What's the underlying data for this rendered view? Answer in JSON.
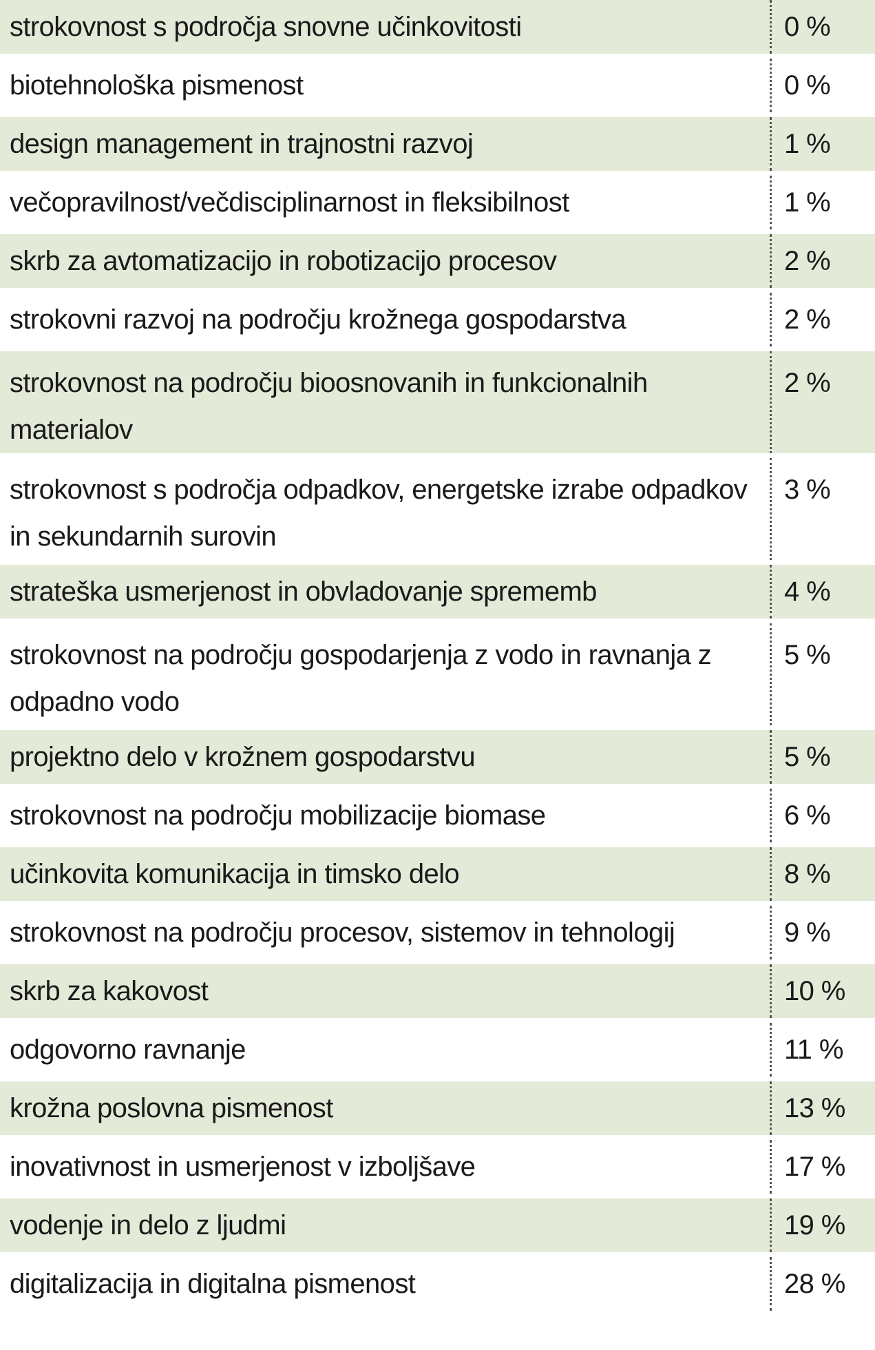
{
  "rows": [
    {
      "label": "strokovnost s področja snovne učinkovitosti",
      "value": "0 %"
    },
    {
      "label": "biotehnološka pismenost",
      "value": "0 %"
    },
    {
      "label": "design management in trajnostni razvoj",
      "value": "1 %"
    },
    {
      "label": "večopravilnost/večdisciplinarnost in fleksibilnost",
      "value": "1 %"
    },
    {
      "label": "skrb za avtomatizacijo in robotizacijo procesov",
      "value": "2 %"
    },
    {
      "label": "strokovni razvoj na področju krožnega gospodarstva",
      "value": "2 %"
    },
    {
      "label": "strokovnost na področju bioosnovanih in funkcionalnih materialov",
      "value": "2 %"
    },
    {
      "label": "strokovnost s področja odpadkov, energetske izrabe odpadkov in sekundarnih surovin",
      "value": "3 %"
    },
    {
      "label": "strateška usmerjenost in obvladovanje sprememb",
      "value": "4 %"
    },
    {
      "label": "strokovnost na področju gospodarjenja z vodo in ravnanja z odpadno vodo",
      "value": "5 %"
    },
    {
      "label": "projektno delo v krožnem gospodarstvu",
      "value": "5 %"
    },
    {
      "label": "strokovnost na področju mobilizacije biomase",
      "value": "6 %"
    },
    {
      "label": "učinkovita komunikacija in timsko delo",
      "value": "8 %"
    },
    {
      "label": "strokovnost na področju procesov, sistemov in tehnologij",
      "value": "9 %"
    },
    {
      "label": "skrb za kakovost",
      "value": "10 %"
    },
    {
      "label": "odgovorno ravnanje",
      "value": "11 %"
    },
    {
      "label": "krožna poslovna pismenost",
      "value": "13 %"
    },
    {
      "label": "inovativnost in usmerjenost v izboljšave",
      "value": "17 %"
    },
    {
      "label": "vodenje in delo z ljudmi",
      "value": "19 %"
    },
    {
      "label": "digitalizacija in digitalna pismenost",
      "value": "28 %"
    }
  ],
  "colors": {
    "row_shaded": "#e4ead8",
    "row_plain": "#ffffff",
    "text": "#1a1a1a",
    "divider": "#555555"
  }
}
